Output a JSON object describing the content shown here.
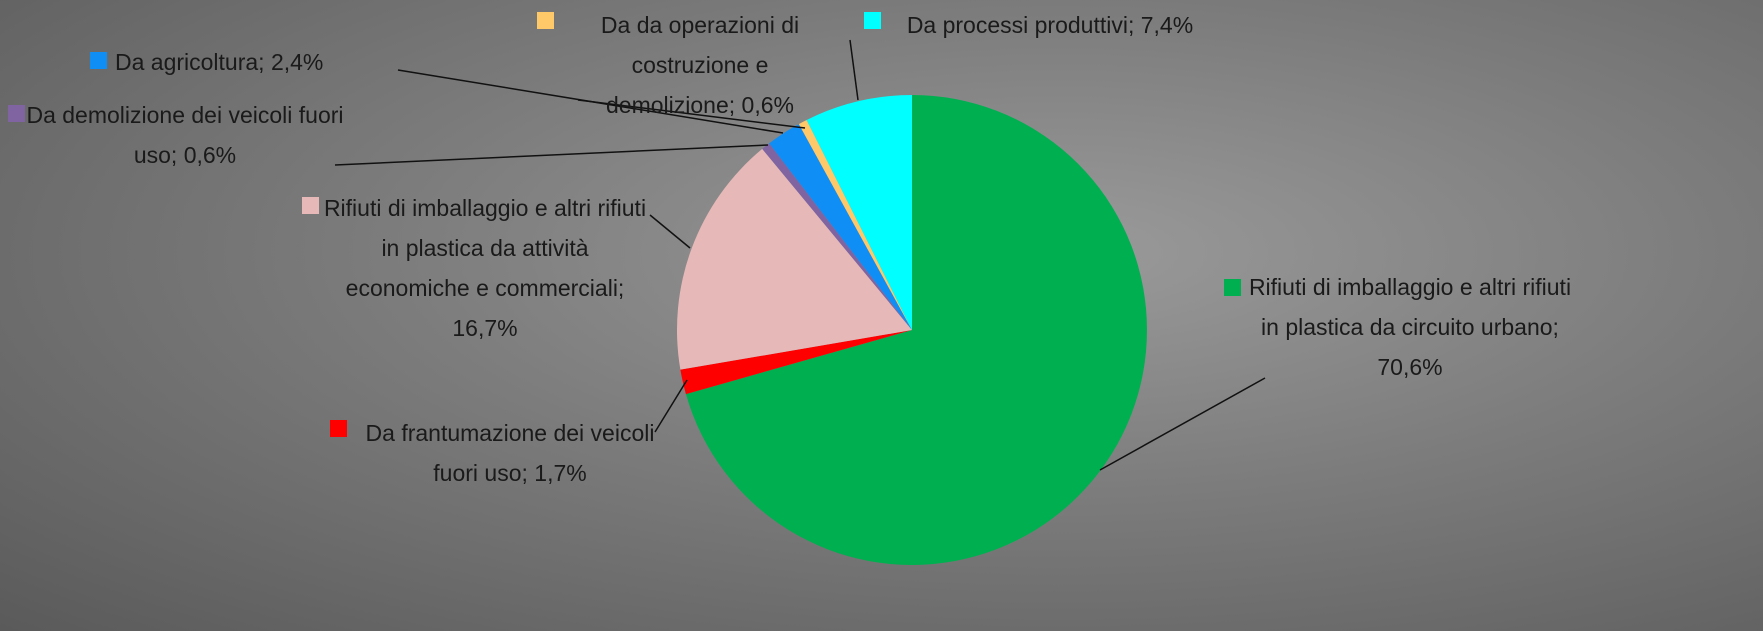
{
  "chart_data": {
    "type": "pie",
    "values": [
      70.6,
      1.7,
      16.7,
      0.6,
      2.4,
      0.6,
      7.4
    ],
    "value_labels": [
      "Rifiuti di imballaggio e altri rifiuti in plastica da circuito urbano; 70,6%",
      "Da frantumazione dei veicoli fuori uso; 1,7%",
      "Rifiuti di imballaggio e altri rifiuti in plastica da attività economiche e commerciali; 16,7%",
      "Da demolizione dei veicoli fuori uso; 0,6%",
      "Da agricoltura; 2,4%",
      "Da da operazioni di costruzione e demolizione; 0,6%",
      "Da processi produttivi; 7,4%"
    ],
    "colors": [
      "#00b050",
      "#ff0000",
      "#e6b9b8",
      "#8064a2",
      "#0f8ef5",
      "#ffc869",
      "#00ffff"
    ]
  }
}
